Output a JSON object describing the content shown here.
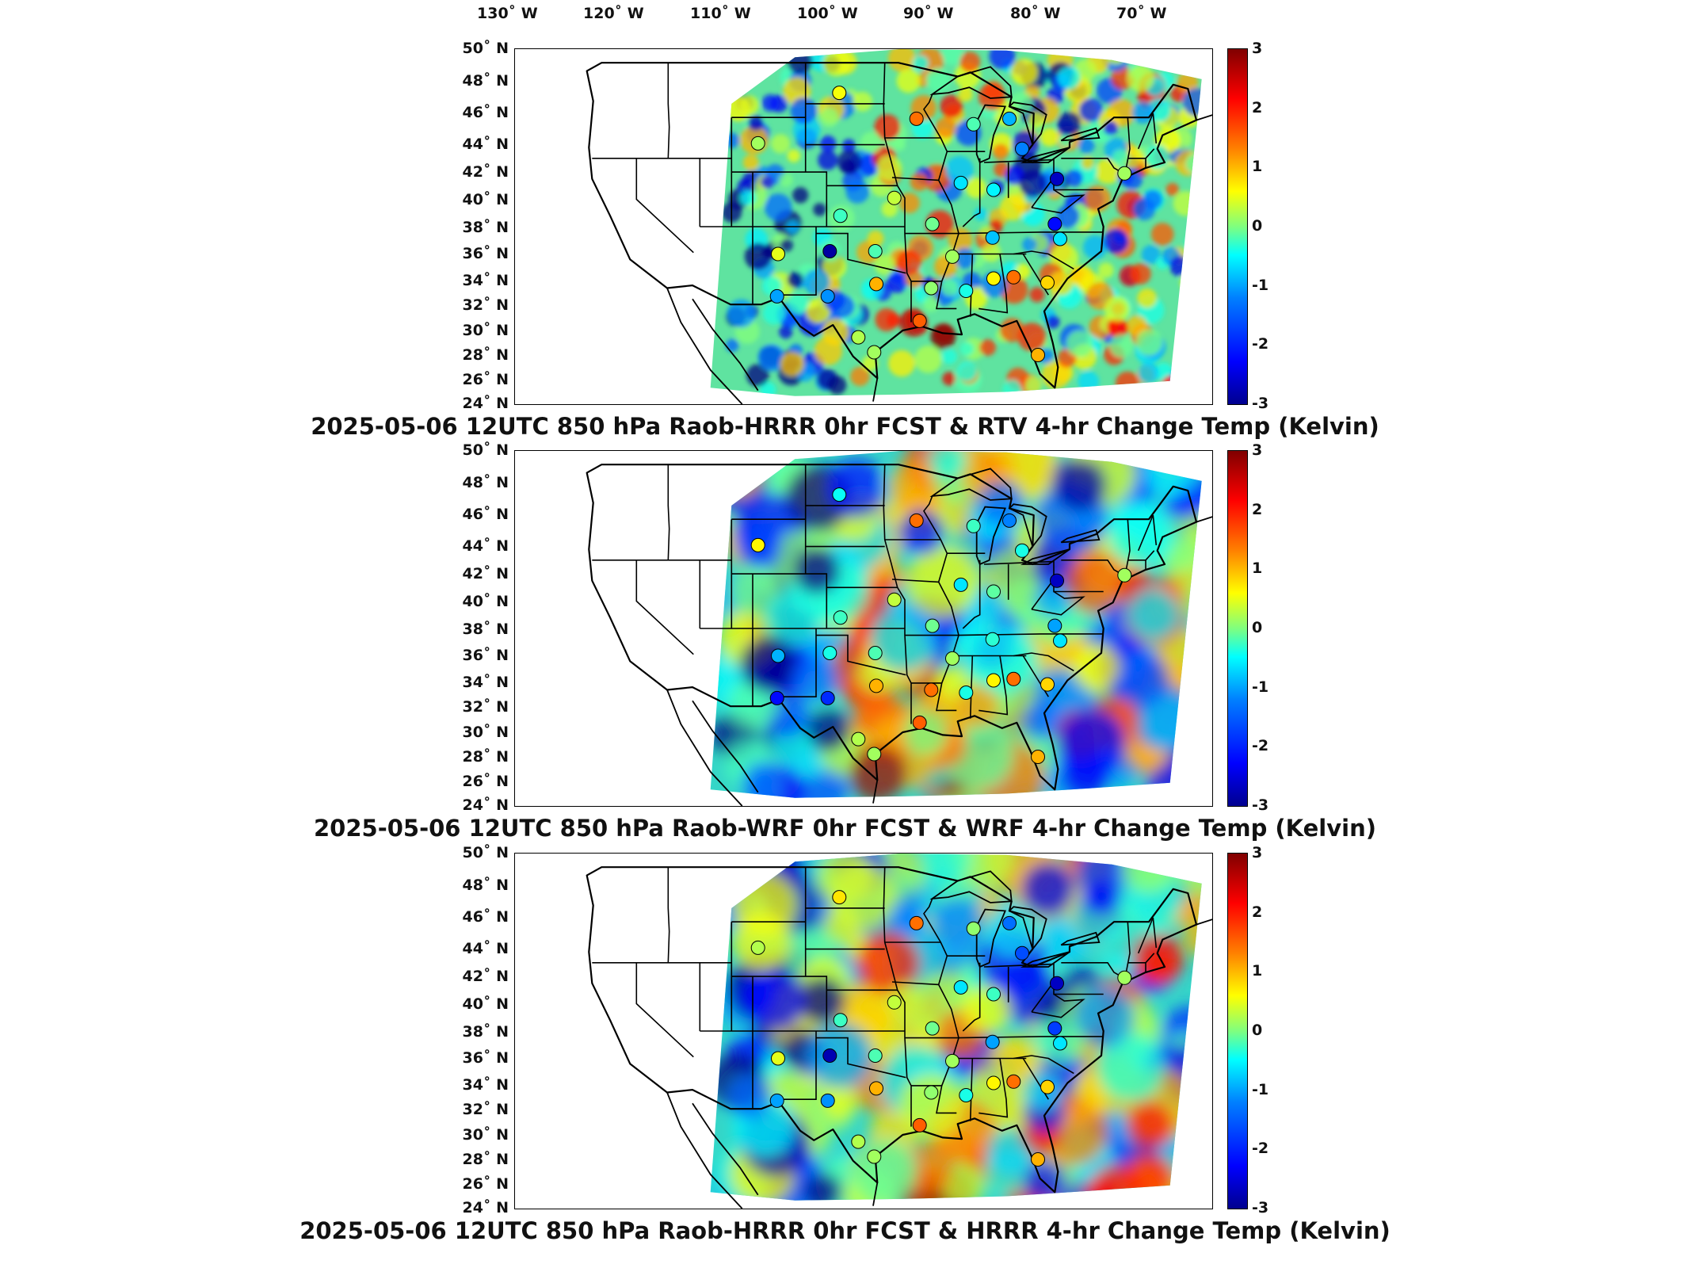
{
  "longitude_labels": [
    "130˚ W",
    "120˚ W",
    "110˚ W",
    "100˚ W",
    "90˚ W",
    "80˚ W",
    "70˚ W"
  ],
  "latitude_labels": [
    "50˚ N",
    "48˚ N",
    "46˚ N",
    "44˚ N",
    "42˚ N",
    "40˚ N",
    "38˚ N",
    "36˚ N",
    "34˚ N",
    "32˚ N",
    "30˚ N",
    "28˚ N",
    "26˚ N",
    "24˚ N"
  ],
  "colorbar": {
    "ticks": [
      "3",
      "2",
      "1",
      "0",
      "-1",
      "-2",
      "-3"
    ],
    "min": -3,
    "max": 3,
    "colormap": "jet"
  },
  "panels": [
    {
      "title": "2025-05-06 12UTC 850 hPa Raob-HRRR 0hr FCST & RTV 4-hr Change Temp (Kelvin)"
    },
    {
      "title": "2025-05-06 12UTC 850 hPa Raob-WRF 0hr FCST & WRF 4-hr Change Temp (Kelvin)"
    },
    {
      "title": "2025-05-06 12UTC 850 hPa Raob-HRRR 0hr FCST & HRRR 4-hr Change Temp (Kelvin)"
    }
  ],
  "stations": [
    {
      "lon": -100.8,
      "lat": 46.8,
      "v": [
        0.7,
        -0.7,
        0.9
      ]
    },
    {
      "lon": -108.5,
      "lat": 43.1,
      "v": [
        0.2,
        0.8,
        0.3
      ]
    },
    {
      "lon": -93.5,
      "lat": 44.9,
      "v": [
        1.6,
        1.6,
        1.6
      ]
    },
    {
      "lon": -88.1,
      "lat": 44.5,
      "v": [
        -0.3,
        -0.4,
        0.1
      ]
    },
    {
      "lon": -84.7,
      "lat": 44.9,
      "v": [
        -1.2,
        -1.5,
        -1.6
      ]
    },
    {
      "lon": -83.5,
      "lat": 42.7,
      "v": [
        -1.5,
        -0.6,
        -1.8
      ]
    },
    {
      "lon": -80.2,
      "lat": 40.5,
      "v": [
        -2.6,
        -2.6,
        -2.6
      ]
    },
    {
      "lon": -89.3,
      "lat": 40.2,
      "v": [
        -0.9,
        -0.9,
        -0.9
      ]
    },
    {
      "lon": -86.2,
      "lat": 39.7,
      "v": [
        -0.8,
        -0.2,
        -0.4
      ]
    },
    {
      "lon": -100.7,
      "lat": 37.8,
      "v": [
        -0.4,
        -0.4,
        -0.4
      ]
    },
    {
      "lon": -95.6,
      "lat": 39.1,
      "v": [
        0.4,
        0.4,
        0.4
      ]
    },
    {
      "lon": -92.0,
      "lat": 37.2,
      "v": [
        -0.1,
        -0.1,
        -0.1
      ]
    },
    {
      "lon": -86.3,
      "lat": 36.2,
      "v": [
        -1.1,
        -0.5,
        -1.3
      ]
    },
    {
      "lon": -80.4,
      "lat": 37.2,
      "v": [
        -2.2,
        -1.3,
        -1.9
      ]
    },
    {
      "lon": -79.9,
      "lat": 36.1,
      "v": [
        -0.9,
        -0.9,
        -0.9
      ]
    },
    {
      "lon": -97.4,
      "lat": 35.2,
      "v": [
        -0.3,
        -0.3,
        -0.3
      ]
    },
    {
      "lon": -101.7,
      "lat": 35.2,
      "v": [
        -2.8,
        -0.6,
        -2.7
      ]
    },
    {
      "lon": -106.6,
      "lat": 35.0,
      "v": [
        0.6,
        -1.2,
        0.6
      ]
    },
    {
      "lon": -90.1,
      "lat": 34.8,
      "v": [
        0.2,
        0.2,
        0.2
      ]
    },
    {
      "lon": -97.3,
      "lat": 32.8,
      "v": [
        1.2,
        1.2,
        1.2
      ]
    },
    {
      "lon": -101.9,
      "lat": 31.9,
      "v": [
        -1.4,
        -2.0,
        -1.4
      ]
    },
    {
      "lon": -92.1,
      "lat": 32.5,
      "v": [
        0.1,
        1.6,
        0.1
      ]
    },
    {
      "lon": -88.8,
      "lat": 32.3,
      "v": [
        -0.6,
        -0.6,
        -0.6
      ]
    },
    {
      "lon": -86.2,
      "lat": 33.2,
      "v": [
        0.8,
        0.8,
        0.8
      ]
    },
    {
      "lon": -84.3,
      "lat": 33.3,
      "v": [
        1.6,
        1.6,
        1.6
      ]
    },
    {
      "lon": -81.1,
      "lat": 32.9,
      "v": [
        1.0,
        1.0,
        1.0
      ]
    },
    {
      "lon": -106.7,
      "lat": 31.9,
      "v": [
        -1.3,
        -2.2,
        -1.3
      ]
    },
    {
      "lon": -99.0,
      "lat": 28.9,
      "v": [
        0.3,
        0.3,
        0.3
      ]
    },
    {
      "lon": -97.5,
      "lat": 27.8,
      "v": [
        0.2,
        0.2,
        0.2
      ]
    },
    {
      "lon": -93.2,
      "lat": 30.1,
      "v": [
        1.7,
        1.7,
        1.7
      ]
    },
    {
      "lon": -82.0,
      "lat": 27.6,
      "v": [
        1.2,
        1.2,
        1.2
      ]
    },
    {
      "lon": -73.8,
      "lat": 40.9,
      "v": [
        0.2,
        0.2,
        0.2
      ]
    }
  ]
}
